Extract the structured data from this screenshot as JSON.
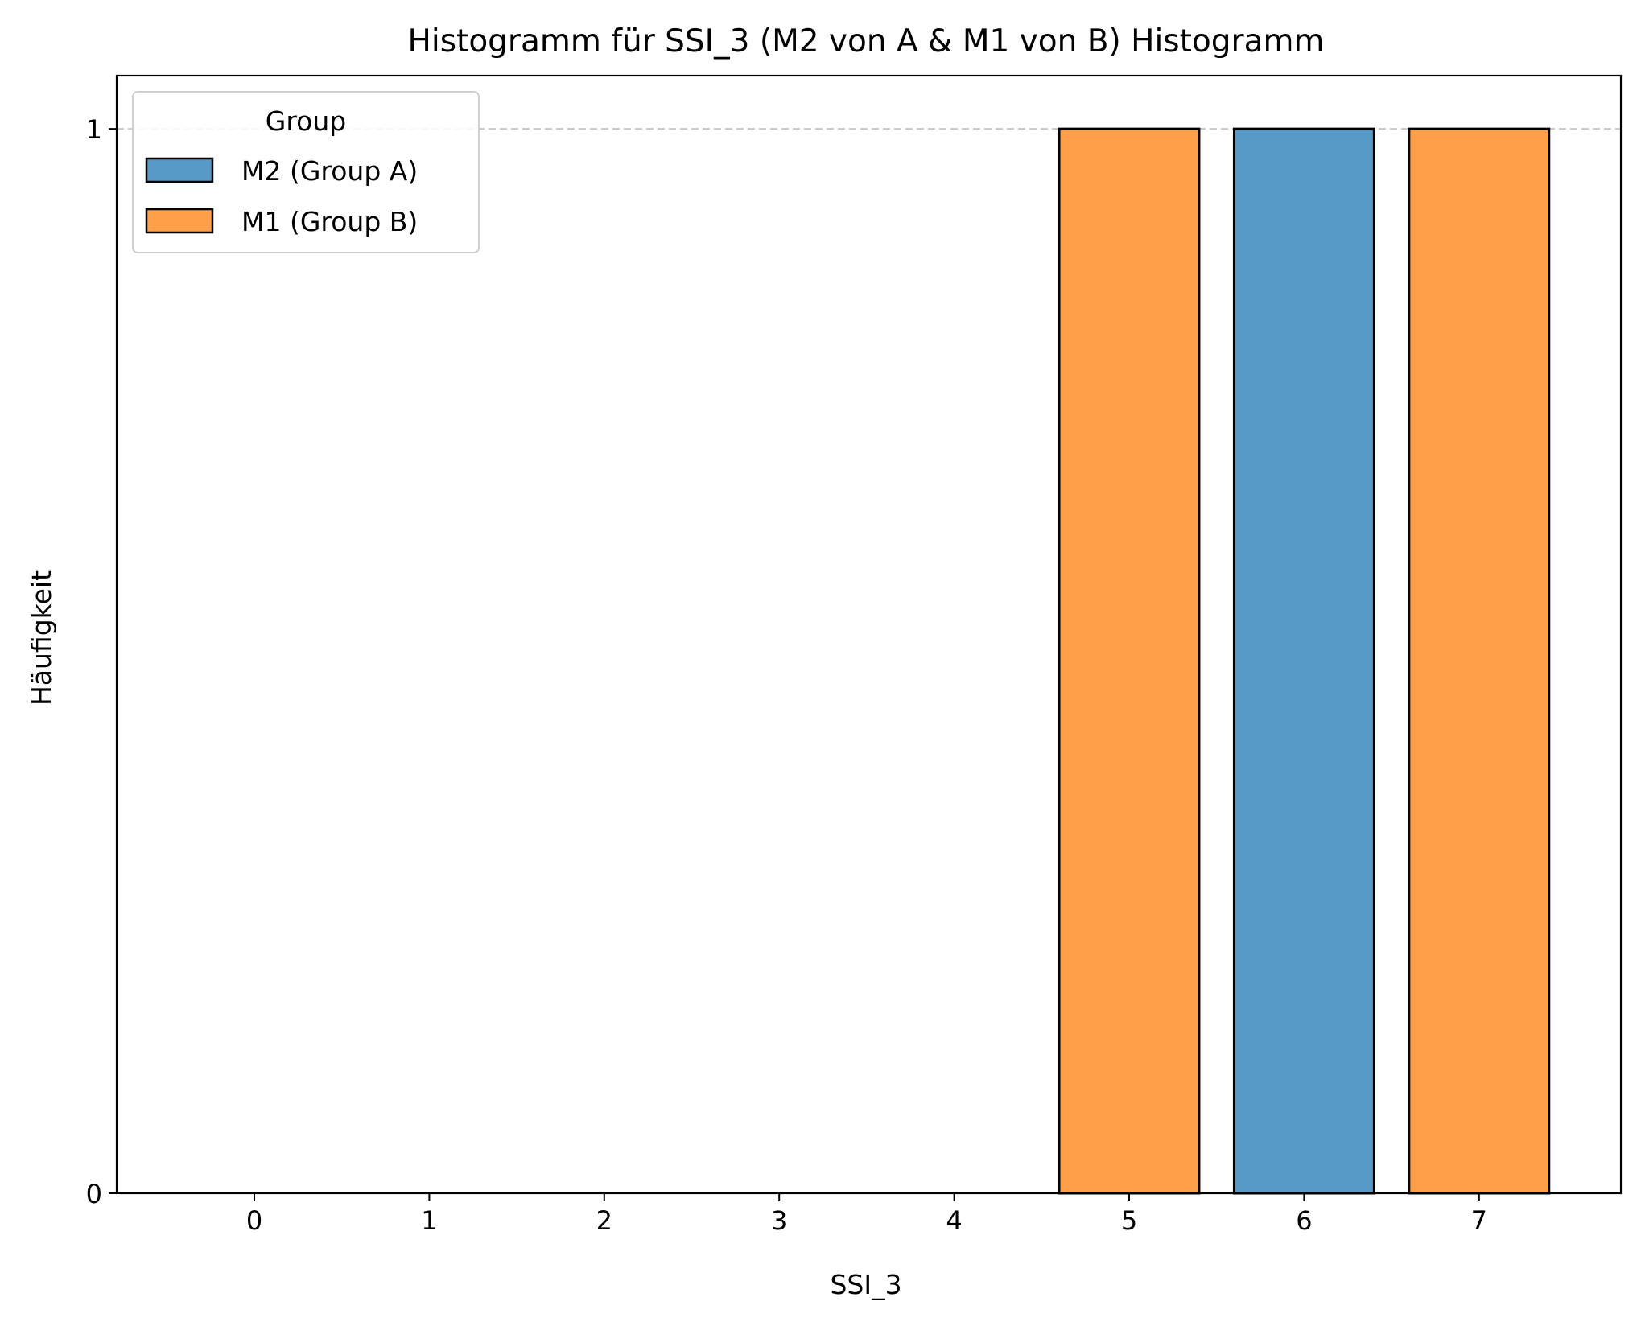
{
  "chart_data": {
    "type": "bar",
    "title": "Histogramm für SSI_3 (M2 von A & M1 von B) Histogramm",
    "xlabel": "SSI_3",
    "ylabel": "Häufigkeit",
    "categories": [
      "0",
      "1",
      "2",
      "3",
      "4",
      "5",
      "6",
      "7"
    ],
    "series": [
      {
        "name": "M2 (Group A)",
        "color": "#5799c7",
        "values": [
          0,
          0,
          0,
          0,
          0,
          0,
          1,
          0
        ]
      },
      {
        "name": "M1 (Group B)",
        "color": "#ff9f4a",
        "values": [
          0,
          0,
          0,
          0,
          0,
          1,
          0,
          1
        ]
      }
    ],
    "stacked": true,
    "ylim": [
      0,
      1.05
    ],
    "yticks": [
      "0",
      "1"
    ],
    "grid": "dashed horizontal at y=1",
    "legend": {
      "title": "Group",
      "position": "top-left"
    }
  }
}
